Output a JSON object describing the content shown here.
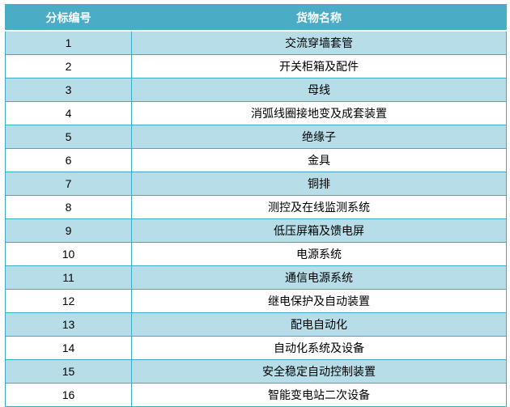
{
  "colors": {
    "header_bg": "#4BACC6",
    "band_row_bg": "#B6DDE8",
    "plain_row_bg": "#FFFFFF",
    "border": "#3BADC7",
    "header_text": "#FFFFFF",
    "body_text": "#000000"
  },
  "table": {
    "headers": [
      {
        "label": "分标编号"
      },
      {
        "label": "货物名称"
      }
    ],
    "rows": [
      {
        "id": "1",
        "name": "交流穿墙套管"
      },
      {
        "id": "2",
        "name": "开关柜箱及配件"
      },
      {
        "id": "3",
        "name": "母线"
      },
      {
        "id": "4",
        "name": "消弧线圈接地变及成套装置"
      },
      {
        "id": "5",
        "name": "绝缘子"
      },
      {
        "id": "6",
        "name": "金具"
      },
      {
        "id": "7",
        "name": "铜排"
      },
      {
        "id": "8",
        "name": "测控及在线监测系统"
      },
      {
        "id": "9",
        "name": "低压屏箱及馈电屏"
      },
      {
        "id": "10",
        "name": "电源系统"
      },
      {
        "id": "11",
        "name": "通信电源系统"
      },
      {
        "id": "12",
        "name": "继电保护及自动装置"
      },
      {
        "id": "13",
        "name": "配电自动化"
      },
      {
        "id": "14",
        "name": "自动化系统及设备"
      },
      {
        "id": "15",
        "name": "安全稳定自动控制装置"
      },
      {
        "id": "16",
        "name": "智能变电站二次设备"
      }
    ]
  }
}
